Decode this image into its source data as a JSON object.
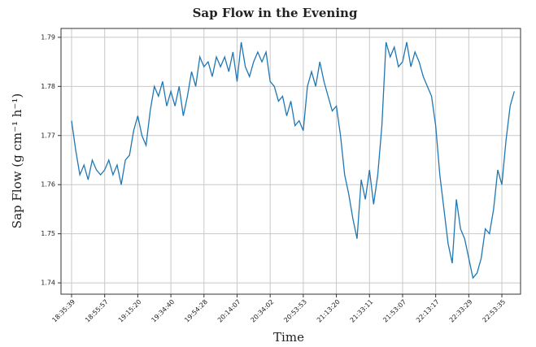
{
  "chart_data": {
    "type": "line",
    "title": "Sap Flow in the Evening",
    "x_label": "Time",
    "y_label": "Sap Flow (g cm⁻¹ h⁻¹)",
    "categories": [
      "18:35:39",
      null,
      null,
      null,
      null,
      null,
      null,
      null,
      "18:55:57",
      null,
      null,
      null,
      null,
      null,
      null,
      null,
      "19:15:20",
      null,
      null,
      null,
      null,
      null,
      null,
      null,
      "19:34:40",
      null,
      null,
      null,
      null,
      null,
      null,
      null,
      "19:54:28",
      null,
      null,
      null,
      null,
      null,
      null,
      null,
      "20:14:07",
      null,
      null,
      null,
      null,
      null,
      null,
      null,
      "20:34:02",
      null,
      null,
      null,
      null,
      null,
      null,
      null,
      "20:53:53",
      null,
      null,
      null,
      null,
      null,
      null,
      null,
      "21:13:20",
      null,
      null,
      null,
      null,
      null,
      null,
      null,
      "21:33:11",
      null,
      null,
      null,
      null,
      null,
      null,
      null,
      "21:53:07",
      null,
      null,
      null,
      null,
      null,
      null,
      null,
      "22:13:17",
      null,
      null,
      null,
      null,
      null,
      null,
      null,
      "22:33:29",
      null,
      null,
      null,
      null,
      null,
      null,
      null,
      "22:53:35",
      null,
      null,
      null
    ],
    "series": [
      {
        "name": "Sap Flow",
        "color": "#1f77b4",
        "values": [
          1.773,
          1.767,
          1.762,
          1.764,
          1.761,
          1.765,
          1.763,
          1.762,
          1.763,
          1.765,
          1.762,
          1.764,
          1.76,
          1.765,
          1.766,
          1.771,
          1.774,
          1.77,
          1.768,
          1.775,
          1.78,
          1.778,
          1.781,
          1.776,
          1.779,
          1.776,
          1.78,
          1.774,
          1.778,
          1.783,
          1.78,
          1.786,
          1.784,
          1.785,
          1.782,
          1.786,
          1.784,
          1.786,
          1.783,
          1.787,
          1.781,
          1.789,
          1.784,
          1.782,
          1.785,
          1.787,
          1.785,
          1.787,
          1.781,
          1.78,
          1.777,
          1.778,
          1.774,
          1.777,
          1.772,
          1.773,
          1.771,
          1.78,
          1.783,
          1.78,
          1.785,
          1.781,
          1.778,
          1.775,
          1.776,
          1.77,
          1.762,
          1.758,
          1.753,
          1.749,
          1.761,
          1.757,
          1.763,
          1.756,
          1.762,
          1.772,
          1.789,
          1.786,
          1.788,
          1.784,
          1.785,
          1.789,
          1.784,
          1.787,
          1.785,
          1.782,
          1.78,
          1.778,
          1.772,
          1.762,
          1.755,
          1.748,
          1.744,
          1.757,
          1.751,
          1.749,
          1.745,
          1.741,
          1.742,
          1.745,
          1.751,
          1.75,
          1.755,
          1.763,
          1.76,
          1.769,
          1.776,
          1.779
        ]
      }
    ],
    "ylim": [
      1.7377,
      1.7918
    ],
    "yticks": [
      1.74,
      1.75,
      1.76,
      1.77,
      1.78,
      1.79
    ],
    "grid": true
  }
}
